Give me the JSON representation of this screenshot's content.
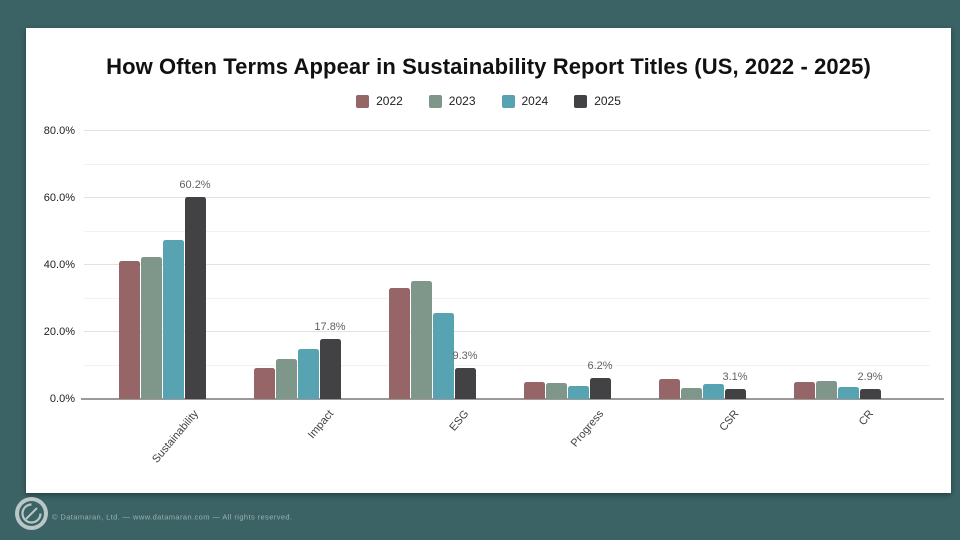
{
  "page": {
    "background": "#3b6264",
    "card_background": "#ffffff"
  },
  "chart_data": {
    "type": "bar",
    "title": "How Often Terms Appear in Sustainability Report Titles (US, 2022 - 2025)",
    "categories": [
      "Sustainability",
      "Impact",
      "ESG",
      "Progress",
      "CSR",
      "CR"
    ],
    "series": [
      {
        "name": "2022",
        "color": "#966568",
        "values": [
          41.3,
          9.4,
          33.0,
          5.2,
          6.0,
          5.2
        ]
      },
      {
        "name": "2023",
        "color": "#7f968b",
        "values": [
          42.5,
          11.8,
          35.2,
          4.8,
          3.4,
          5.4
        ]
      },
      {
        "name": "2024",
        "color": "#58a3b1",
        "values": [
          47.5,
          15.0,
          25.7,
          4.0,
          4.4,
          3.6
        ]
      },
      {
        "name": "2025",
        "color": "#424245",
        "values": [
          60.2,
          17.8,
          9.3,
          6.2,
          3.1,
          2.9
        ]
      }
    ],
    "value_labels": {
      "labeled_series": "2025",
      "texts": [
        "60.2%",
        "17.8%",
        "9.3%",
        "6.2%",
        "3.1%",
        "2.9%"
      ]
    },
    "y_axis": {
      "min": 0,
      "max": 80,
      "ticks": [
        "0.0%",
        "20.0%",
        "40.0%",
        "60.0%",
        "80.0%"
      ],
      "tick_values": [
        0,
        20,
        40,
        60,
        80
      ],
      "minor_step": 10,
      "major_step": 20
    },
    "grid": "on",
    "legend_position": "top"
  },
  "footer": {
    "logo": "datamaran-logo",
    "copyright": "© Datamaran, Ltd. — www.datamaran.com — All rights reserved."
  }
}
